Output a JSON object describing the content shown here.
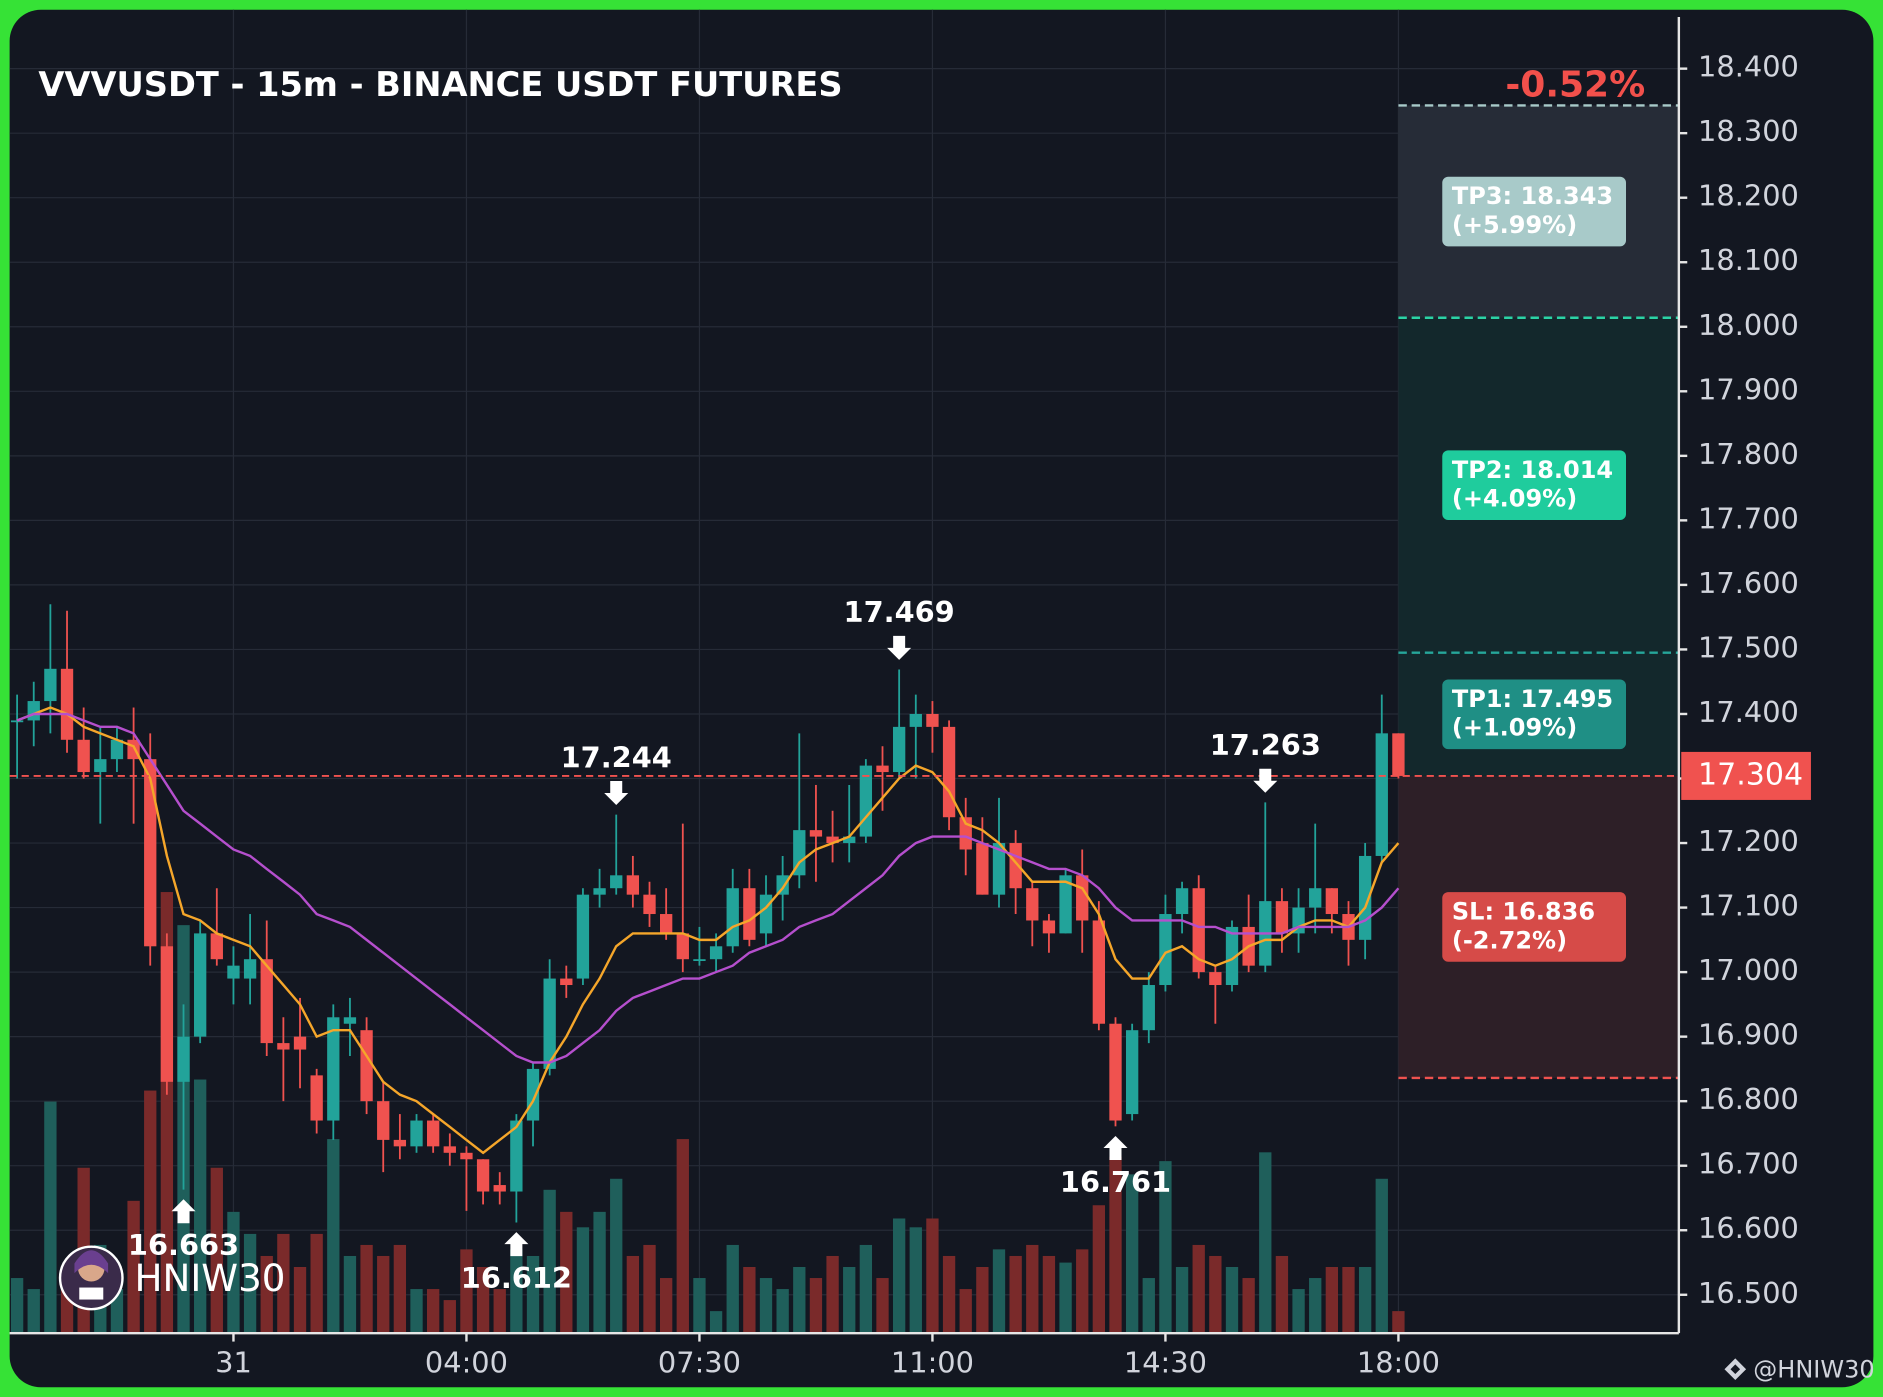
{
  "chart_data": {
    "type": "candlestick",
    "title": "VVVUSDT - 15m - BINANCE USDT FUTURES",
    "change": "-0.52%",
    "open": [
      17.39,
      17.39,
      17.42,
      17.47,
      17.36,
      17.31,
      17.33,
      17.36,
      17.33,
      17.04,
      16.83,
      16.9,
      17.06,
      16.99,
      16.99,
      17.02,
      16.89,
      16.9,
      16.84,
      16.77,
      16.92,
      16.91,
      16.8,
      16.74,
      16.73,
      16.77,
      16.73,
      16.72,
      16.71,
      16.67,
      16.66,
      16.77,
      16.85,
      16.99,
      16.99,
      17.12,
      17.13,
      17.15,
      17.12,
      17.09,
      17.06,
      17.02,
      17.02,
      17.04,
      17.13,
      17.06,
      17.12,
      17.15,
      17.22,
      17.21,
      17.2,
      17.21,
      17.32,
      17.31,
      17.38,
      17.4,
      17.38,
      17.24,
      17.2,
      17.12,
      17.2,
      17.13,
      17.08,
      17.06,
      17.15,
      17.08,
      16.92,
      16.78,
      16.91,
      16.98,
      17.09,
      17.13,
      17.0,
      16.98,
      17.07,
      17.01,
      17.11,
      17.06,
      17.1,
      17.13,
      17.09,
      17.05,
      17.18,
      17.37
    ],
    "high": [
      17.43,
      17.45,
      17.57,
      17.56,
      17.41,
      17.38,
      17.38,
      17.41,
      17.37,
      17.06,
      16.95,
      17.08,
      17.13,
      17.04,
      17.09,
      17.08,
      16.93,
      16.96,
      16.85,
      16.95,
      16.96,
      16.93,
      16.83,
      16.78,
      16.78,
      16.78,
      16.75,
      16.73,
      16.71,
      16.69,
      16.78,
      16.86,
      17.02,
      17.01,
      17.13,
      17.16,
      17.244,
      17.18,
      17.14,
      17.13,
      17.23,
      17.07,
      17.06,
      17.16,
      17.16,
      17.15,
      17.18,
      17.37,
      17.29,
      17.25,
      17.29,
      17.33,
      17.35,
      17.469,
      17.43,
      17.42,
      17.39,
      17.27,
      17.24,
      17.27,
      17.22,
      17.14,
      17.09,
      17.16,
      17.19,
      17.11,
      16.93,
      16.92,
      17.0,
      17.12,
      17.14,
      17.15,
      17.01,
      17.08,
      17.12,
      17.263,
      17.13,
      17.13,
      17.23,
      17.13,
      17.11,
      17.2,
      17.43,
      17.37
    ],
    "low": [
      17.3,
      17.35,
      17.37,
      17.34,
      17.3,
      17.23,
      17.31,
      17.23,
      17.01,
      16.81,
      16.663,
      16.89,
      17.01,
      16.95,
      16.95,
      16.87,
      16.8,
      16.82,
      16.75,
      16.74,
      16.87,
      16.78,
      16.69,
      16.71,
      16.72,
      16.72,
      16.7,
      16.63,
      16.64,
      16.64,
      16.612,
      16.73,
      16.84,
      16.96,
      16.98,
      17.1,
      17.12,
      17.1,
      17.07,
      17.05,
      17.0,
      17.01,
      17.0,
      17.03,
      17.04,
      17.04,
      17.08,
      17.13,
      17.14,
      17.17,
      17.17,
      17.2,
      17.25,
      17.3,
      17.3,
      17.34,
      17.22,
      17.15,
      17.12,
      17.1,
      17.09,
      17.04,
      17.03,
      17.06,
      17.03,
      16.91,
      16.761,
      16.77,
      16.89,
      16.97,
      17.06,
      16.99,
      16.92,
      16.97,
      17.0,
      17.0,
      17.03,
      17.03,
      17.06,
      17.06,
      17.01,
      17.02,
      17.17,
      17.3
    ],
    "close": [
      17.39,
      17.42,
      17.47,
      17.36,
      17.31,
      17.33,
      17.36,
      17.33,
      17.04,
      16.83,
      16.9,
      17.06,
      17.02,
      17.01,
      17.02,
      16.89,
      16.88,
      16.88,
      16.77,
      16.93,
      16.93,
      16.8,
      16.74,
      16.73,
      16.77,
      16.73,
      16.72,
      16.71,
      16.66,
      16.66,
      16.77,
      16.85,
      16.99,
      16.98,
      17.12,
      17.13,
      17.15,
      17.12,
      17.09,
      17.06,
      17.02,
      17.02,
      17.04,
      17.13,
      17.05,
      17.12,
      17.15,
      17.22,
      17.21,
      17.2,
      17.21,
      17.32,
      17.31,
      17.38,
      17.4,
      17.38,
      17.24,
      17.19,
      17.12,
      17.2,
      17.13,
      17.08,
      17.06,
      17.15,
      17.08,
      16.92,
      16.77,
      16.91,
      16.98,
      17.09,
      17.13,
      17.0,
      16.98,
      17.07,
      17.01,
      17.11,
      17.06,
      17.1,
      17.13,
      17.09,
      17.05,
      17.18,
      17.37,
      17.304
    ],
    "volume": [
      25,
      20,
      105,
      30,
      75,
      40,
      20,
      60,
      110,
      200,
      185,
      115,
      75,
      55,
      45,
      35,
      45,
      30,
      45,
      88,
      35,
      40,
      35,
      40,
      20,
      20,
      15,
      38,
      30,
      20,
      38,
      35,
      65,
      55,
      48,
      55,
      70,
      35,
      40,
      25,
      88,
      25,
      10,
      40,
      30,
      25,
      20,
      30,
      25,
      35,
      30,
      40,
      25,
      52,
      48,
      52,
      35,
      20,
      30,
      38,
      35,
      40,
      35,
      32,
      38,
      58,
      80,
      72,
      25,
      78,
      30,
      40,
      35,
      30,
      25,
      82,
      35,
      20,
      25,
      30,
      30,
      30,
      70,
      10
    ],
    "up_color": "#22a39a",
    "down_color": "#f0524f",
    "up_volume_color": "#1f5f5b",
    "down_volume_color": "#7a2a2a",
    "lines": [
      {
        "color": "#f5a62a",
        "values": [
          17.39,
          17.4,
          17.41,
          17.4,
          17.38,
          17.37,
          17.36,
          17.35,
          17.3,
          17.18,
          17.09,
          17.08,
          17.06,
          17.05,
          17.04,
          17.01,
          16.98,
          16.95,
          16.9,
          16.91,
          16.91,
          16.87,
          16.83,
          16.81,
          16.8,
          16.78,
          16.76,
          16.74,
          16.72,
          16.74,
          16.76,
          16.8,
          16.86,
          16.9,
          16.95,
          16.99,
          17.04,
          17.06,
          17.06,
          17.06,
          17.06,
          17.05,
          17.05,
          17.07,
          17.08,
          17.1,
          17.13,
          17.17,
          17.19,
          17.2,
          17.21,
          17.24,
          17.27,
          17.3,
          17.32,
          17.31,
          17.28,
          17.23,
          17.22,
          17.2,
          17.17,
          17.14,
          17.14,
          17.14,
          17.13,
          17.09,
          17.02,
          16.99,
          16.99,
          17.03,
          17.04,
          17.02,
          17.01,
          17.02,
          17.04,
          17.05,
          17.05,
          17.07,
          17.08,
          17.08,
          17.07,
          17.1,
          17.17,
          17.2
        ]
      },
      {
        "color": "#b54fcd",
        "values": [
          17.39,
          17.4,
          17.4,
          17.4,
          17.39,
          17.38,
          17.38,
          17.37,
          17.33,
          17.29,
          17.25,
          17.23,
          17.21,
          17.19,
          17.18,
          17.16,
          17.14,
          17.12,
          17.09,
          17.08,
          17.07,
          17.05,
          17.03,
          17.01,
          16.99,
          16.97,
          16.95,
          16.93,
          16.91,
          16.89,
          16.87,
          16.86,
          16.86,
          16.87,
          16.89,
          16.91,
          16.94,
          16.96,
          16.97,
          16.98,
          16.99,
          16.99,
          17.0,
          17.01,
          17.03,
          17.04,
          17.05,
          17.07,
          17.08,
          17.09,
          17.11,
          17.13,
          17.15,
          17.18,
          17.2,
          17.21,
          17.21,
          17.21,
          17.2,
          17.19,
          17.18,
          17.17,
          17.16,
          17.16,
          17.15,
          17.13,
          17.1,
          17.08,
          17.08,
          17.08,
          17.08,
          17.07,
          17.07,
          17.06,
          17.06,
          17.06,
          17.06,
          17.07,
          17.07,
          17.07,
          17.07,
          17.08,
          17.1,
          17.13
        ]
      }
    ],
    "xlim": [
      -0.45,
      99.85
    ],
    "xticks": [
      {
        "value": 13,
        "label": "31"
      },
      {
        "value": 27,
        "label": "04:00"
      },
      {
        "value": 41,
        "label": "07:30"
      },
      {
        "value": 55,
        "label": "11:00"
      },
      {
        "value": 69,
        "label": "14:30"
      },
      {
        "value": 83,
        "label": "18:00"
      }
    ],
    "ylim": [
      16.4405,
      18.4912
    ],
    "yticks": [
      {
        "value": 16.5,
        "label": "16.500"
      },
      {
        "value": 16.6,
        "label": "16.600"
      },
      {
        "value": 16.7,
        "label": "16.700"
      },
      {
        "value": 16.8,
        "label": "16.800"
      },
      {
        "value": 16.9,
        "label": "16.900"
      },
      {
        "value": 17.0,
        "label": "17.000"
      },
      {
        "value": 17.1,
        "label": "17.100"
      },
      {
        "value": 17.2,
        "label": "17.200"
      },
      {
        "value": 17.3,
        "label": "17.300"
      },
      {
        "value": 17.4,
        "label": "17.400"
      },
      {
        "value": 17.5,
        "label": "17.500"
      },
      {
        "value": 17.6,
        "label": "17.600"
      },
      {
        "value": 17.7,
        "label": "17.700"
      },
      {
        "value": 17.8,
        "label": "17.800"
      },
      {
        "value": 17.9,
        "label": "17.900"
      },
      {
        "value": 18.0,
        "label": "18.000"
      },
      {
        "value": 18.1,
        "label": "18.100"
      },
      {
        "value": 18.2,
        "label": "18.200"
      },
      {
        "value": 18.3,
        "label": "18.300"
      },
      {
        "value": 18.4,
        "label": "18.400"
      }
    ],
    "volume_lim": [
      0,
      600
    ],
    "grid": true,
    "peaks": [
      {
        "x": 36,
        "value": 17.244
      },
      {
        "x": 53,
        "value": 17.469
      },
      {
        "x": 75,
        "value": 17.263
      }
    ],
    "troughs": [
      {
        "x": 10,
        "value": 16.663
      },
      {
        "x": 30,
        "value": 16.612
      },
      {
        "x": 66,
        "value": 16.761
      }
    ],
    "last_price": 17.304,
    "last_price_color": "#f0524f",
    "levels": [
      {
        "label": "TP3: 18.343",
        "change": "(+5.99%)",
        "value": 18.343,
        "color": "#a8cac9",
        "line_color": "#a8cac9",
        "zone_color": "#262c37"
      },
      {
        "label": "TP2: 18.014",
        "change": "(+4.09%)",
        "value": 18.014,
        "color": "#1fcc9d",
        "line_color": "#2bd3a5",
        "zone_color": "#13282c"
      },
      {
        "label": "TP1: 17.495",
        "change": "(+1.09%)",
        "value": 17.495,
        "color": "#1f8f85",
        "line_color": "#26a69a",
        "zone_color": "#13282c"
      },
      {
        "label": "SL: 16.836",
        "change": "(-2.72%)",
        "value": 16.836,
        "color": "#d64b48",
        "line_color": "#f0524f",
        "zone_color": "#2d1f27"
      }
    ],
    "watermark": "HNIW30",
    "credit": "@HNIW30"
  }
}
